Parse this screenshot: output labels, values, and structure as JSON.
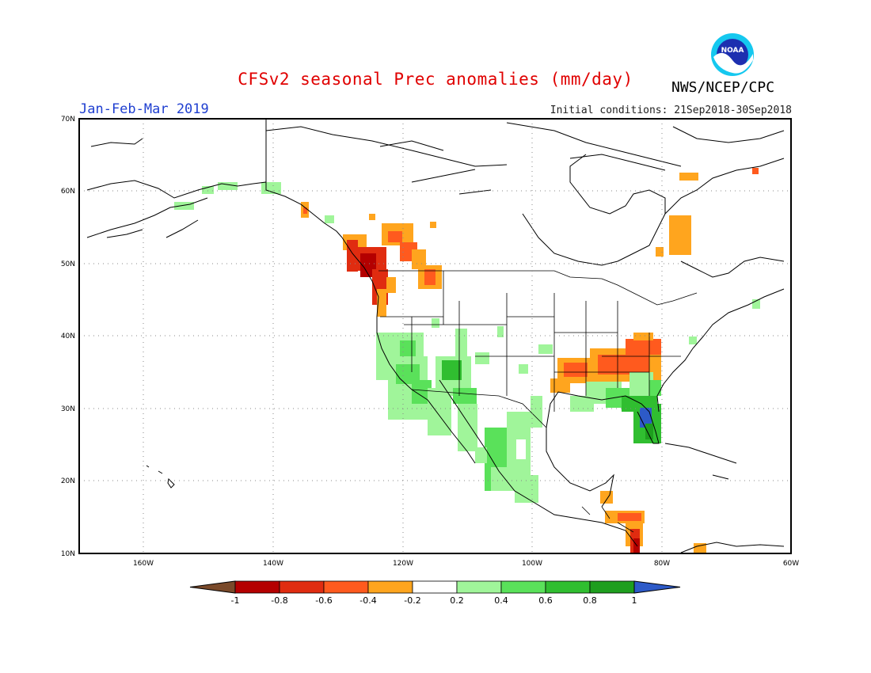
{
  "header": {
    "title": "CFSv2 seasonal Prec anomalies (mm/day)",
    "season": "Jan-Feb-Mar 2019",
    "initial_conditions": "Initial conditions: 21Sep2018-30Sep2018",
    "agency": "NWS/NCEP/CPC",
    "logo_text": "NOAA"
  },
  "map": {
    "extent": {
      "lon_min": -170,
      "lon_max": -60,
      "lat_min": 10,
      "lat_max": 70
    },
    "lat_labels": [
      "70N",
      "60N",
      "50N",
      "40N",
      "30N",
      "20N",
      "10N"
    ],
    "lon_labels": [
      "160W",
      "140W",
      "120W",
      "100W",
      "80W",
      "60W"
    ]
  },
  "colorbar": {
    "labels": [
      "-1",
      "-0.8",
      "-0.6",
      "-0.4",
      "-0.2",
      "0.2",
      "0.4",
      "0.6",
      "0.8",
      "1"
    ],
    "colors": [
      "#7a4a2a",
      "#b40000",
      "#e02c10",
      "#ff5a1e",
      "#ffa51e",
      "#ffffff",
      "#a0f59a",
      "#5ae15a",
      "#30be30",
      "#1e9e1e",
      "#2d5ac8"
    ]
  },
  "anomaly_regions": [
    {
      "name": "pacific-northwest-coast",
      "value": -0.6
    },
    {
      "name": "british-columbia-interior",
      "value": -0.3
    },
    {
      "name": "southeast-alaska",
      "value": -0.4
    },
    {
      "name": "tennessee-ohio-valley",
      "value": -0.5
    },
    {
      "name": "quebec-labrador",
      "value": -0.3
    },
    {
      "name": "central-america",
      "value": -0.5
    },
    {
      "name": "california-southwest",
      "value": 0.3
    },
    {
      "name": "arizona-new-mexico",
      "value": 0.5
    },
    {
      "name": "mexico-west",
      "value": 0.3
    },
    {
      "name": "gulf-coast",
      "value": 0.3
    },
    {
      "name": "florida",
      "value": 0.8
    },
    {
      "name": "alaska-north",
      "value": 0.3
    }
  ]
}
